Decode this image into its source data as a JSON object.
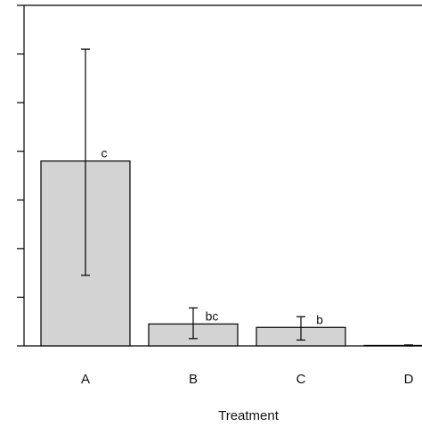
{
  "chart_data": {
    "type": "bar",
    "title": "",
    "xlabel": "Treatment",
    "ylabel": "",
    "categories": [
      "A",
      "B",
      "C",
      "D"
    ],
    "values": [
      3.8,
      0.45,
      0.38,
      0.01
    ],
    "error_low": [
      1.45,
      0.15,
      0.12,
      0.0
    ],
    "error_high": [
      6.1,
      0.78,
      0.6,
      0.02
    ],
    "significance_labels": [
      "c",
      "bc",
      "b",
      ""
    ],
    "ylim": [
      0,
      7
    ],
    "yticks": [
      0,
      1,
      2,
      3,
      4,
      5,
      6,
      7
    ],
    "grid": false,
    "legend": "none",
    "colors": {
      "bar_fill": "#d3d3d3",
      "bar_stroke": "#000000",
      "axis": "#000000"
    }
  }
}
